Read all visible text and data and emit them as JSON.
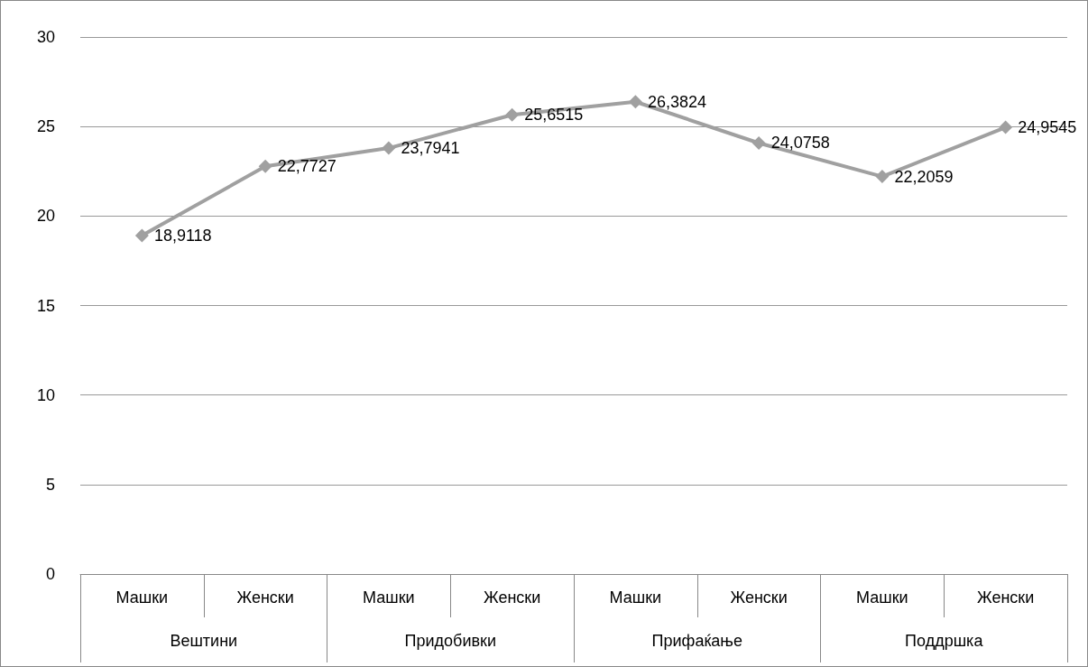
{
  "chart_data": {
    "type": "line",
    "categories": [
      "Машки",
      "Женски",
      "Машки",
      "Женски",
      "Машки",
      "Женски",
      "Машки",
      "Женски"
    ],
    "series": [
      {
        "color": "#a0a0a0",
        "values": [
          18.9118,
          22.7727,
          23.7941,
          25.6515,
          26.3824,
          24.0758,
          22.2059,
          24.9545
        ],
        "value_labels": [
          "18,9118",
          "22,7727",
          "23,7941",
          "25,6515",
          "26,3824",
          "24,0758",
          "22,2059",
          "24,9545"
        ]
      }
    ],
    "annotations": [
      "Вештини",
      "Придобивки",
      "Прифаќање",
      "Поддршка"
    ],
    "ylim": [
      0,
      30
    ],
    "yticks": [
      0,
      5,
      10,
      15,
      20,
      25,
      30
    ],
    "grid": "y",
    "marker": "diamond",
    "line_style": "solid"
  }
}
